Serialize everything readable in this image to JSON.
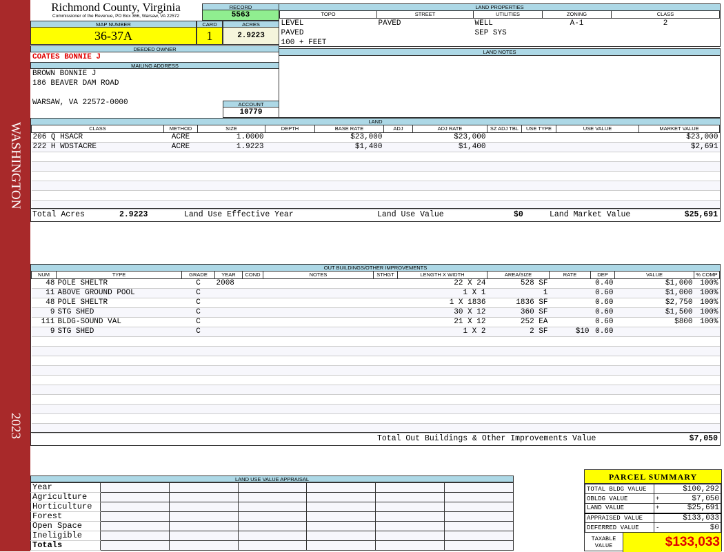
{
  "sidebar": {
    "district": "WASHINGTON",
    "year": "2023"
  },
  "header": {
    "title": "Richmond County, Virginia",
    "subtitle": "Commissioner of the Revenue, PO Box 366, Warsaw, VA 22572",
    "record_label": "RECORD",
    "record": "5563",
    "map_label": "MAP NUMBER",
    "map_number": "36-37A",
    "card_label": "CARD",
    "card": "1",
    "acres_label": "ACRES",
    "acres": "2.9223"
  },
  "owner": {
    "label": "DEEDED OWNER",
    "name": "COATES BONNIE J",
    "mail_label": "MAILING ADDRESS",
    "line1": "BROWN BONNIE J",
    "line2": "186 BEAVER DAM ROAD",
    "line3": "WARSAW, VA 22572-0000",
    "account_label": "ACCOUNT",
    "account": "10779"
  },
  "land_properties": {
    "label": "LAND PROPERTIES",
    "columns": [
      "TOPO",
      "STREET",
      "UTILITIES",
      "ZONING",
      "CLASS"
    ],
    "topo": [
      "LEVEL",
      "PAVED",
      "100 + FEET"
    ],
    "street": [
      "PAVED"
    ],
    "utilities": [
      "WELL",
      "SEP SYS"
    ],
    "zoning": "A-1",
    "class": "2"
  },
  "land_notes": {
    "label": "LAND NOTES"
  },
  "land": {
    "label": "LAND",
    "columns": [
      "CLASS",
      "METHOD",
      "SIZE",
      "DEPTH",
      "BASE RATE",
      "ADJ",
      "ADJ RATE",
      "SZ ADJ TBL",
      "USE TYPE",
      "USE VALUE",
      "MARKET VALUE"
    ],
    "rows": [
      [
        "206 Q HSACR",
        "ACRE",
        "1.0000",
        "",
        "$23,000",
        "",
        "$23,000",
        "",
        "",
        "",
        "$23,000"
      ],
      [
        "222 H WDSTACRE",
        "ACRE",
        "1.9223",
        "",
        "$1,400",
        "",
        "$1,400",
        "",
        "",
        "",
        "$2,691"
      ]
    ],
    "total_acres_label": "Total Acres",
    "total_acres": "2.9223",
    "effective_year_label": "Land Use Effective Year",
    "use_value_label": "Land Use Value",
    "use_value": "$0",
    "market_value_label": "Land Market Value",
    "market_value": "$25,691"
  },
  "outbuildings": {
    "label": "OUT BUILDINGS/OTHER IMPROVEMENTS",
    "columns": [
      "NUM",
      "TYPE",
      "GRADE",
      "YEAR",
      "COND",
      "NOTES",
      "STHGT",
      "LENGTH X WIDTH",
      "AREA/SIZE",
      "RATE",
      "DEP",
      "VALUE",
      "% COMP"
    ],
    "rows": [
      [
        "48",
        "POLE SHELTR",
        "C",
        "2008",
        "",
        "",
        "",
        "22 X 24",
        "528 SF",
        "",
        "0.40",
        "$1,000",
        "100%"
      ],
      [
        "11",
        "ABOVE GROUND POOL",
        "C",
        "",
        "",
        "",
        "",
        "1 X 1",
        "1",
        "",
        "0.60",
        "$1,000",
        "100%"
      ],
      [
        "48",
        "POLE SHELTR",
        "C",
        "",
        "",
        "",
        "",
        "1 X 1836",
        "1836 SF",
        "",
        "0.60",
        "$2,750",
        "100%"
      ],
      [
        "9",
        "STG SHED",
        "C",
        "",
        "",
        "",
        "",
        "30 X 12",
        "360 SF",
        "",
        "0.60",
        "$1,500",
        "100%"
      ],
      [
        "111",
        "BLDG-SOUND VAL",
        "C",
        "",
        "",
        "",
        "",
        "21 X 12",
        "252 EA",
        "",
        "0.60",
        "$800",
        "100%"
      ],
      [
        "9",
        "STG SHED",
        "C",
        "",
        "",
        "",
        "",
        "1 X 2",
        "2 SF",
        "$10",
        "0.60",
        "",
        ""
      ]
    ],
    "total_label": "Total Out Buildings & Other Improvements Value",
    "total": "$7,050"
  },
  "land_use_appraisal": {
    "label": "LAND USE VALUE APPRAISAL",
    "rows": [
      "Year",
      "Agriculture",
      "Horticulture",
      "Forest",
      "Open Space",
      "Ineligible",
      "Totals"
    ]
  },
  "parcel_summary": {
    "label": "PARCEL SUMMARY",
    "rows": [
      [
        "TOTAL BLDG VALUE",
        "",
        "$100,292"
      ],
      [
        "OBLDG VALUE",
        "+",
        "$7,050"
      ],
      [
        "LAND VALUE",
        "+",
        "$25,691"
      ],
      [
        "APPRAISED VALUE",
        "",
        "$133,033"
      ],
      [
        "DEFERRED VALUE",
        "-",
        "$0"
      ]
    ],
    "taxable_label": "TAXABLE VALUE",
    "taxable": "$133,033"
  },
  "colors": {
    "sidebar": "#a8292a",
    "header": "#add8e6",
    "record": "#90ee90",
    "highlight": "#ffff00",
    "owner": "#e00000"
  }
}
